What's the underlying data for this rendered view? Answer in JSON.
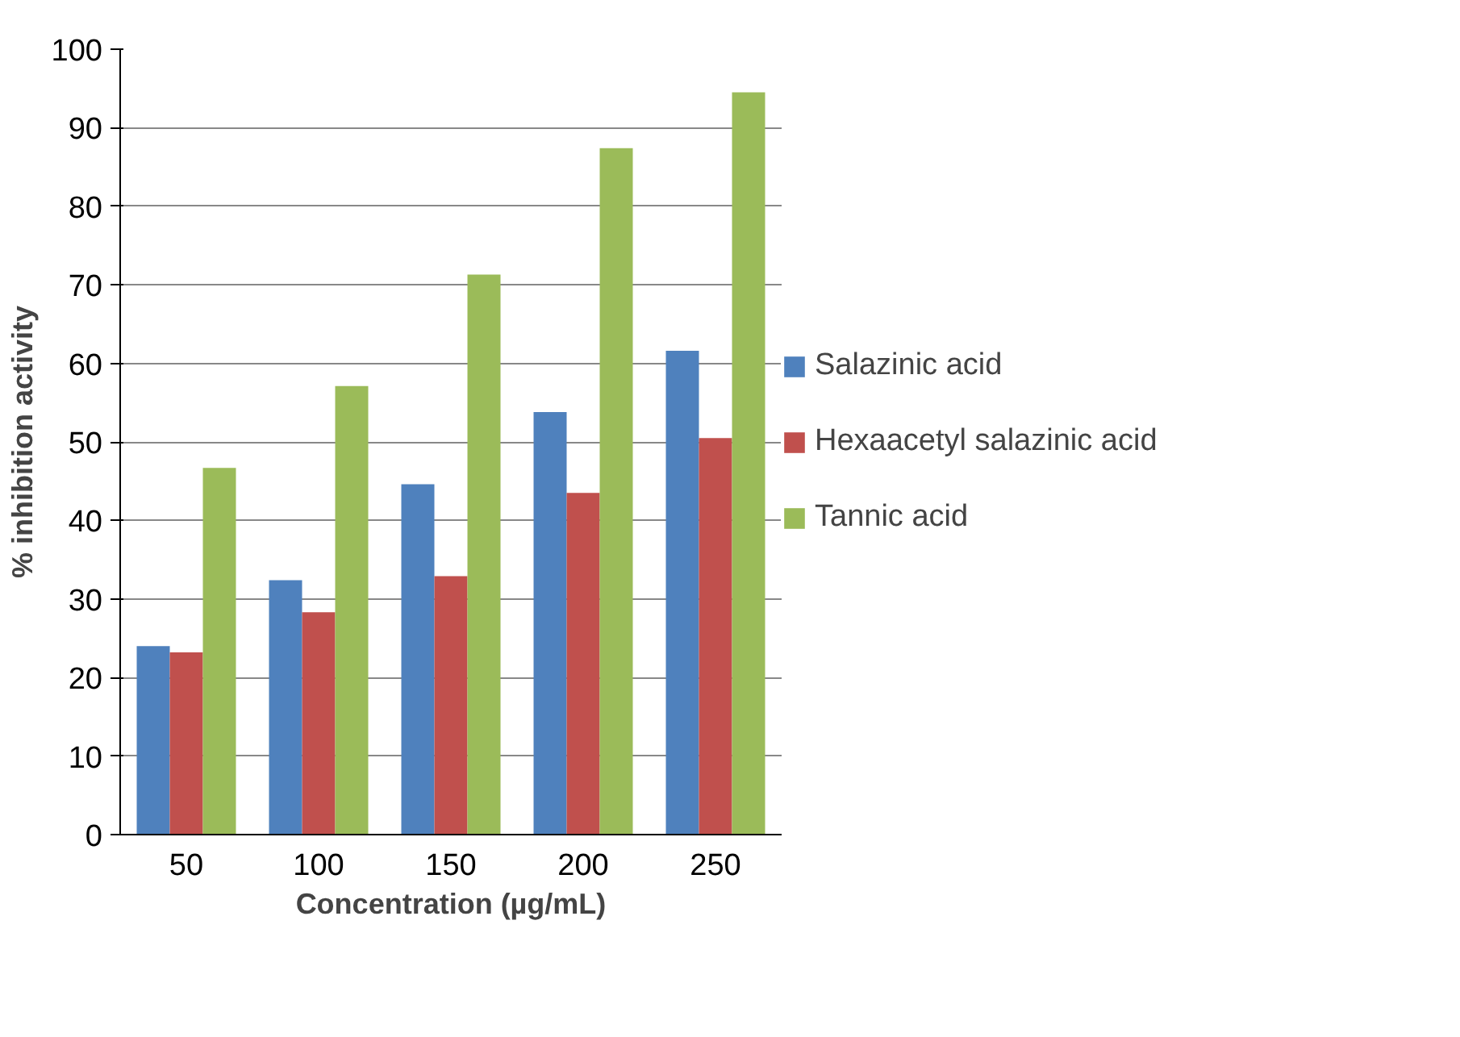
{
  "chart_data": {
    "type": "bar",
    "xlabel": "Concentration (µg/mL)",
    "ylabel": "% inhibition activity",
    "categories": [
      "50",
      "100",
      "150",
      "200",
      "250"
    ],
    "series": [
      {
        "name": "Salazinic acid",
        "color": "#4f81bd",
        "values": [
          24.0,
          32.4,
          44.6,
          53.8,
          61.6
        ]
      },
      {
        "name": "Hexaacetyl salazinic acid",
        "color": "#c0504d",
        "values": [
          23.2,
          28.3,
          32.9,
          43.5,
          50.5
        ]
      },
      {
        "name": "Tannic acid",
        "color": "#9bbb59",
        "values": [
          46.7,
          57.1,
          71.3,
          87.4,
          94.5
        ]
      }
    ],
    "ylim": [
      0,
      100
    ],
    "yticks": [
      0,
      10,
      20,
      30,
      40,
      50,
      60,
      70,
      80,
      90,
      100
    ],
    "grid": "y",
    "legend": "right"
  }
}
